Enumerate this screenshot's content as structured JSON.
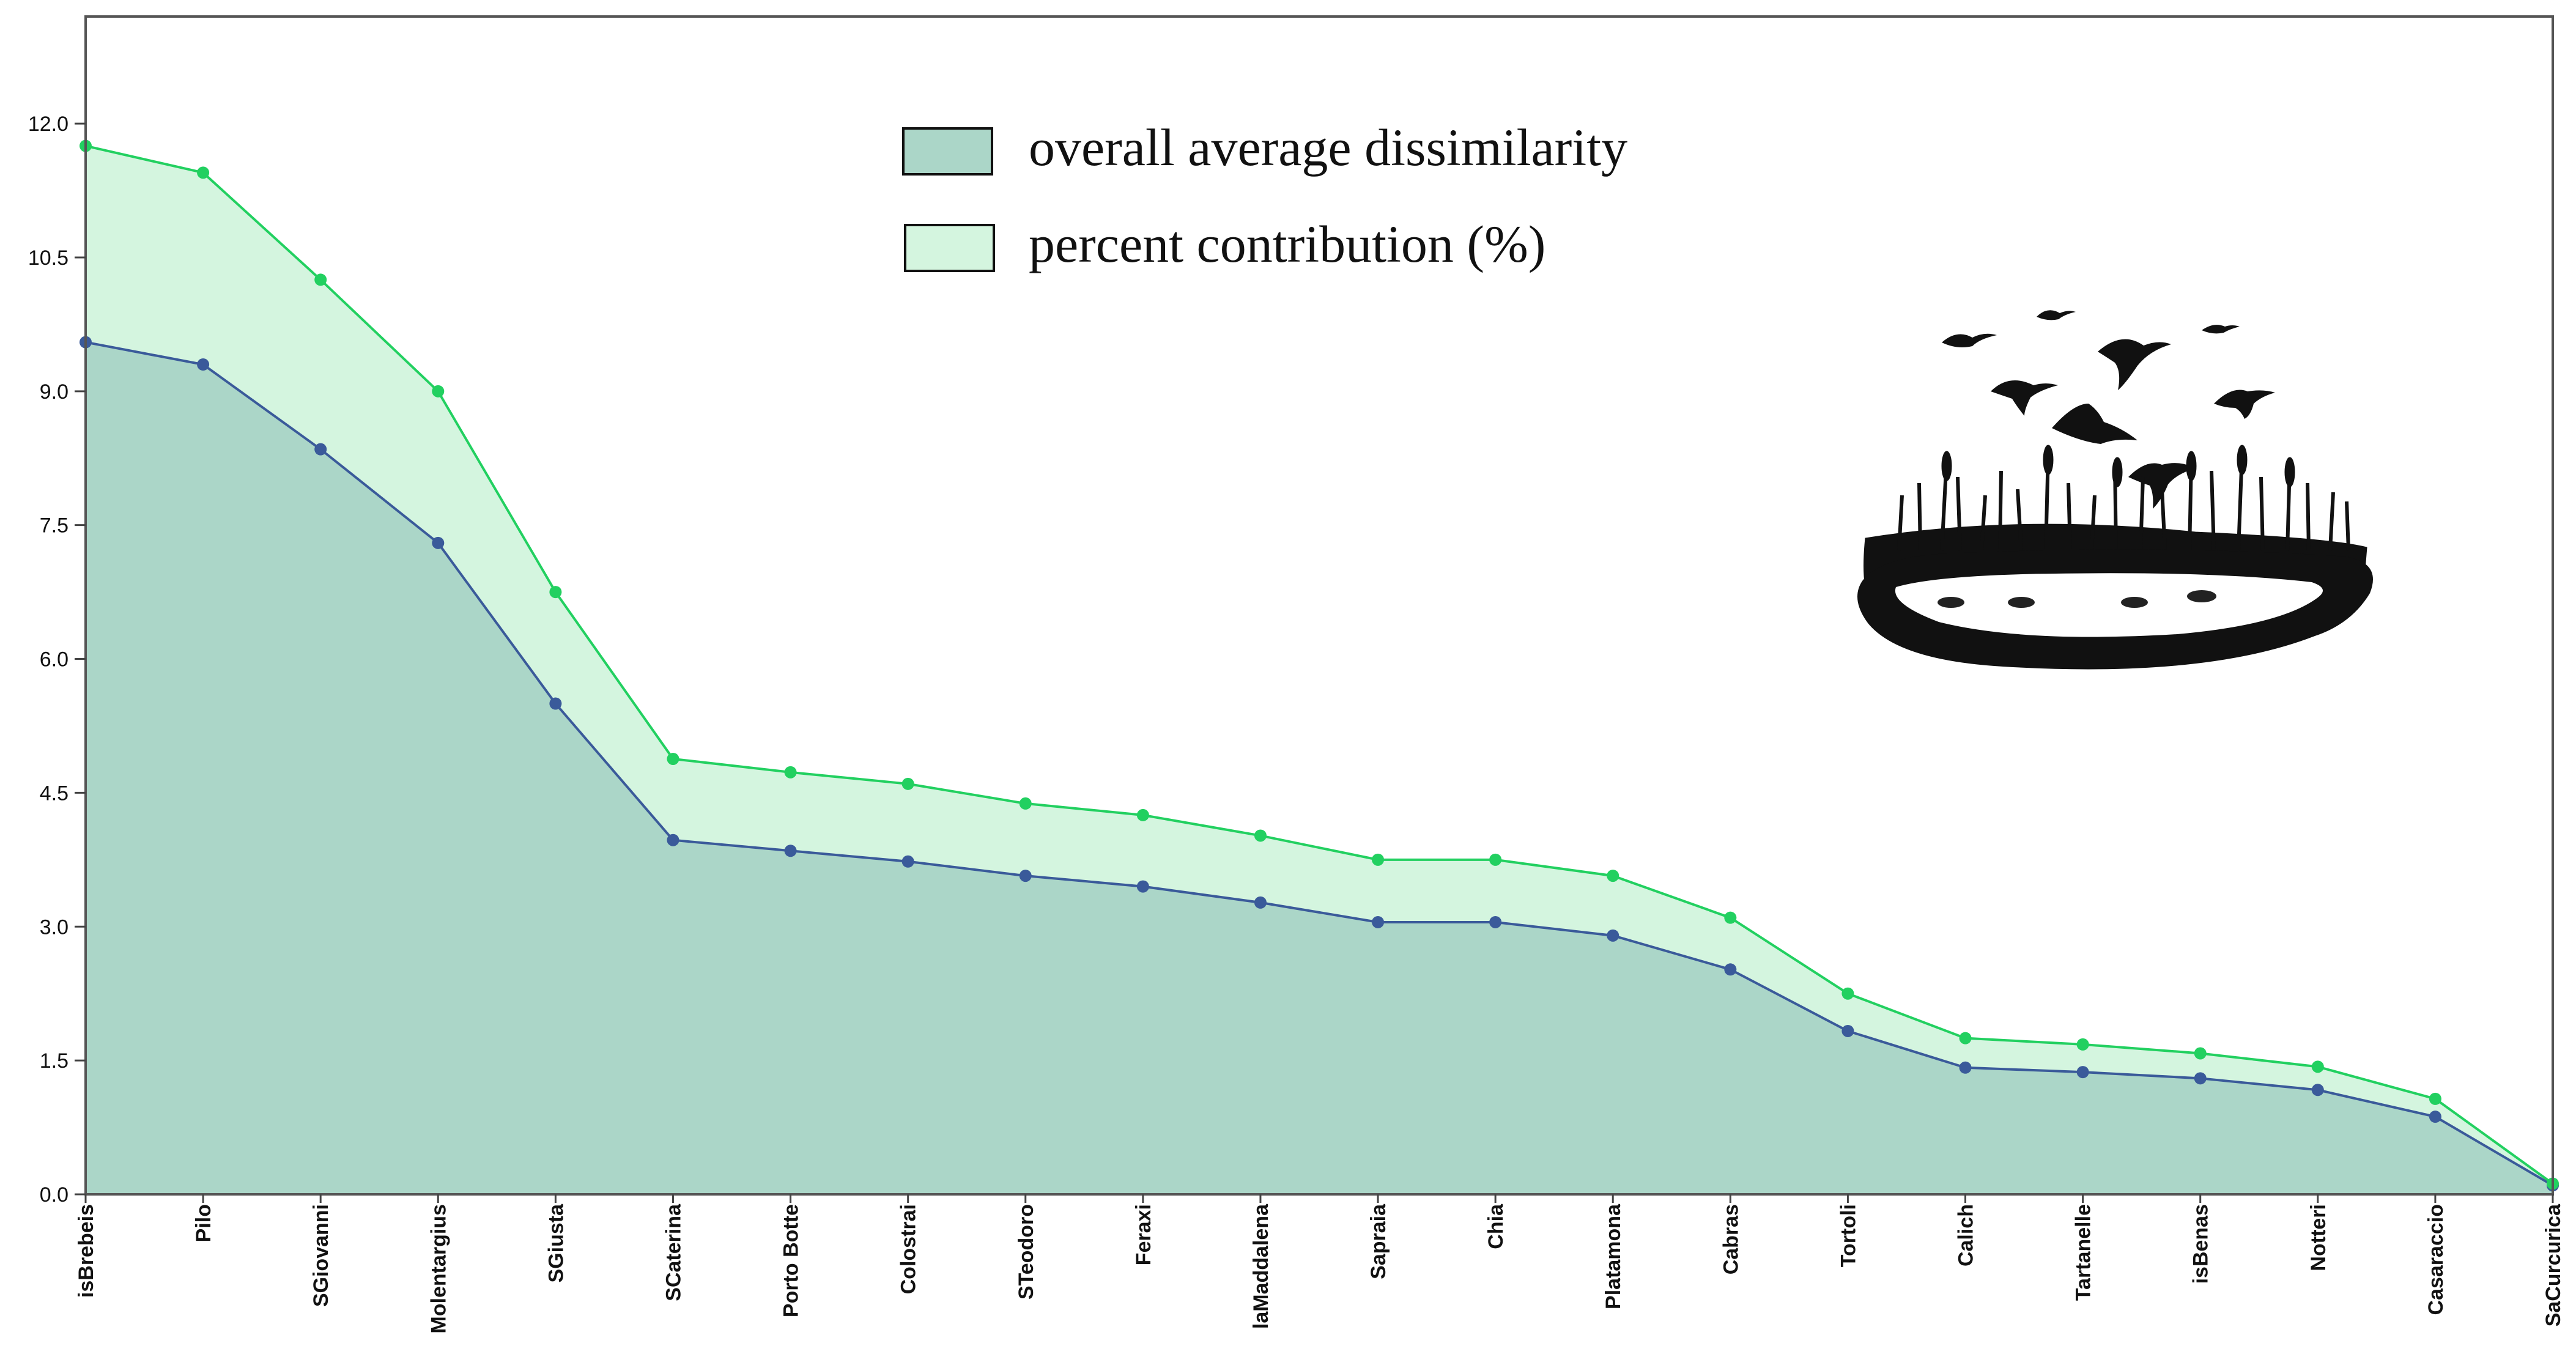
{
  "chart_data": {
    "type": "area",
    "title": "",
    "xlabel": "",
    "ylabel": "",
    "ylim": [
      0,
      13.2
    ],
    "yticks": [
      0.0,
      1.5,
      3.0,
      4.5,
      6.0,
      7.5,
      9.0,
      10.5,
      12.0
    ],
    "ytick_labels": [
      "0.0",
      "1.5",
      "3.0",
      "4.5",
      "6.0",
      "7.5",
      "9.0",
      "10.5",
      "12.0"
    ],
    "grid": false,
    "legend_position": "top-center",
    "categories": [
      "isBrebeis",
      "Pilo",
      "SGiovanni",
      "Molentargius",
      "SGiusta",
      "SCaterina",
      "Porto Botte",
      "Colostrai",
      "STeodoro",
      "Feraxi",
      "laMaddalena",
      "Sapraia",
      "Chia",
      "Platamona",
      "Cabras",
      "Tortoli",
      "Calich",
      "Tartanelle",
      "isBenas",
      "Notteri",
      "Casaraccio",
      "SaCurcurica"
    ],
    "series": [
      {
        "name": "overall average dissimilarity",
        "color": "#abd6c8",
        "line_color": "#3a5a9a",
        "marker_color": "#3a5a9a",
        "values": [
          9.55,
          9.3,
          8.35,
          7.3,
          5.5,
          3.97,
          3.85,
          3.73,
          3.57,
          3.45,
          3.27,
          3.05,
          3.05,
          2.9,
          2.52,
          1.83,
          1.42,
          1.37,
          1.3,
          1.17,
          0.87,
          0.1
        ]
      },
      {
        "name": "percent contribution (%)",
        "color": "#d4f5df",
        "line_color": "#22d060",
        "marker_color": "#22d060",
        "values": [
          11.75,
          11.45,
          10.25,
          9.0,
          6.75,
          4.88,
          4.73,
          4.6,
          4.38,
          4.25,
          4.02,
          3.75,
          3.75,
          3.57,
          3.1,
          2.25,
          1.75,
          1.68,
          1.58,
          1.43,
          1.07,
          0.12
        ]
      }
    ],
    "legend": [
      "overall average dissimilarity",
      "percent contribution (%)"
    ]
  },
  "illustration": {
    "name": "wetland-with-flying-ducks",
    "color": "#111111"
  }
}
